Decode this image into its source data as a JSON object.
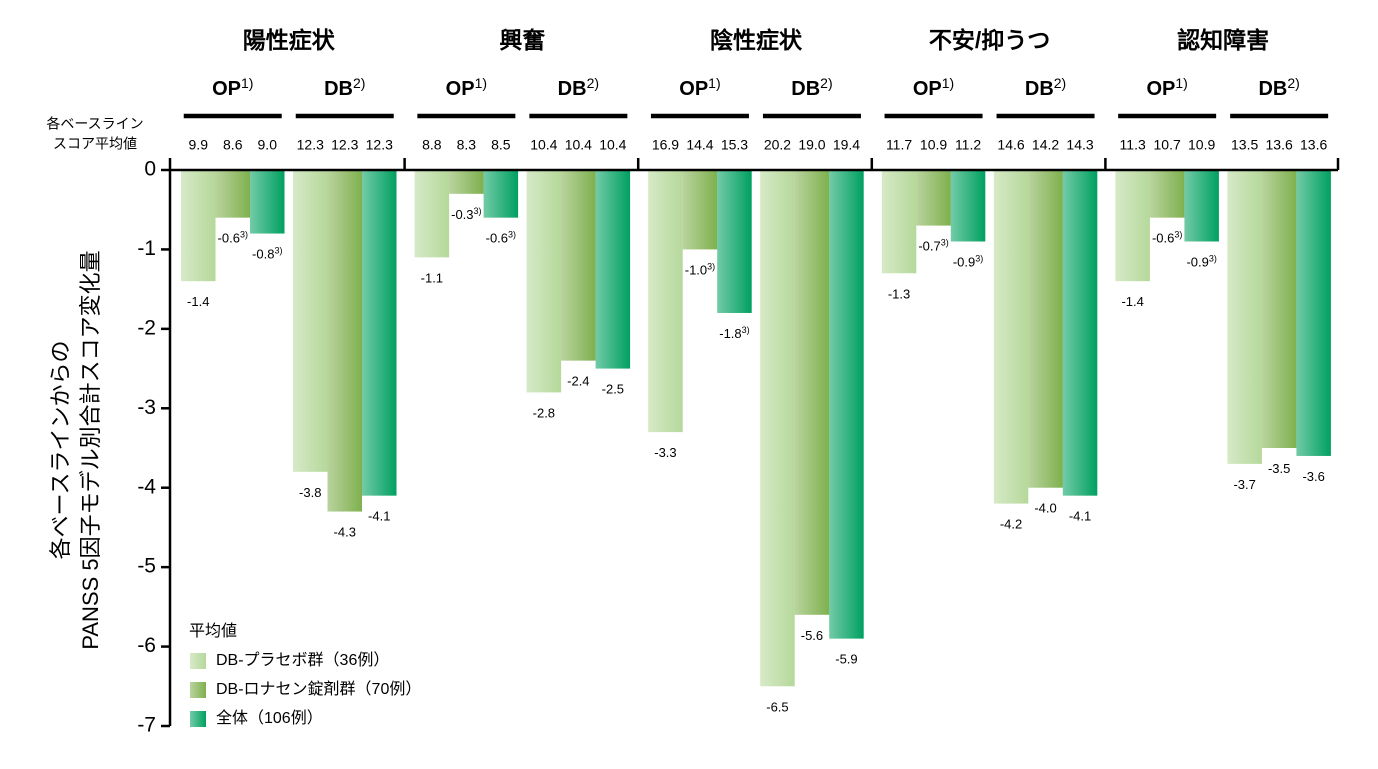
{
  "chart_data": {
    "type": "bar",
    "y_label": [
      "各ベースラインからの",
      "PANSS 5因子モデル別合計スコア変化量"
    ],
    "groups": [
      "陽性症状",
      "興奮",
      "陰性症状",
      "不安/抑うつ",
      "認知障害"
    ],
    "categories": [
      "OP",
      "DB",
      "OP",
      "DB",
      "OP",
      "DB",
      "OP",
      "DB",
      "OP",
      "DB"
    ],
    "category_notes": [
      "1)",
      "2)",
      "1)",
      "2)",
      "1)",
      "2)",
      "1)",
      "2)",
      "1)",
      "2)"
    ],
    "baseline_label": [
      "各ベースライン",
      "スコア平均値"
    ],
    "legend_title": "平均値",
    "ylim": [
      -7,
      0
    ],
    "yticks": [
      0,
      -1,
      -2,
      -3,
      -4,
      -5,
      -6,
      -7
    ],
    "series": [
      {
        "name": "DB-プラセボ群（36例）",
        "color": "#b5d89a",
        "values": [
          -1.4,
          -3.8,
          -1.1,
          -2.8,
          -3.3,
          -6.5,
          -1.3,
          -4.2,
          -1.4,
          -3.7
        ],
        "value_notes": [
          null,
          null,
          null,
          null,
          null,
          null,
          null,
          null,
          null,
          null
        ],
        "baseline": [
          "9.9",
          "12.3",
          "8.8",
          "10.4",
          "16.9",
          "20.2",
          "11.7",
          "14.6",
          "11.3",
          "13.5"
        ]
      },
      {
        "name": "DB-ロナセン錠剤群（70例）",
        "color": "#7fb04e",
        "values": [
          -0.6,
          -4.3,
          -0.3,
          -2.4,
          -1.0,
          -5.6,
          -0.7,
          -4.0,
          -0.6,
          -3.5
        ],
        "value_labels": [
          "-0.6",
          "-4.3",
          "-0.3",
          "-2.4",
          "-1.0",
          "-5.6",
          "-0.7",
          "-4.0",
          "-0.6",
          "-3.5"
        ],
        "value_notes": [
          "3)",
          null,
          "3)",
          null,
          "3)",
          null,
          "3)",
          null,
          "3)",
          null
        ],
        "baseline": [
          "8.6",
          "12.3",
          "8.3",
          "10.4",
          "14.4",
          "19.0",
          "10.9",
          "14.2",
          "10.7",
          "13.6"
        ]
      },
      {
        "name": "全体（106例）",
        "color": "#00a060",
        "values": [
          -0.8,
          -4.1,
          -0.6,
          -2.5,
          -1.8,
          -5.9,
          -0.9,
          -4.1,
          -0.9,
          -3.6
        ],
        "value_notes": [
          "3)",
          null,
          "3)",
          null,
          "3)",
          null,
          "3)",
          null,
          "3)",
          null
        ],
        "baseline": [
          "9.0",
          "12.3",
          "8.5",
          "10.4",
          "15.3",
          "19.4",
          "11.2",
          "14.3",
          "10.9",
          "13.6"
        ]
      }
    ]
  }
}
